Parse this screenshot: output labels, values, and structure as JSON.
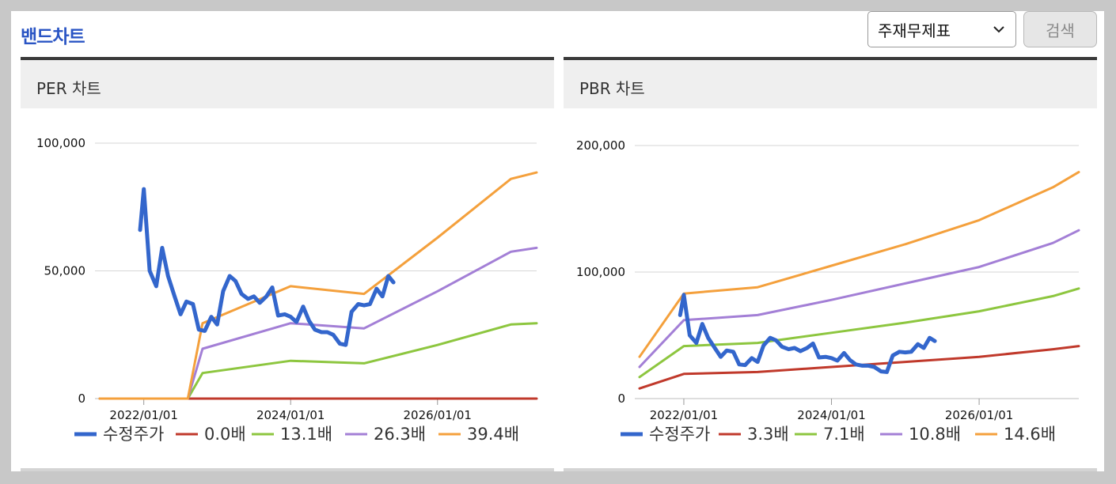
{
  "header": {
    "title": "밴드차트",
    "select_value": "주재무제표",
    "search_label": "검색"
  },
  "panels": [
    {
      "title": "PER 차트"
    },
    {
      "title": "PBR 차트"
    }
  ],
  "chart_data": [
    {
      "type": "line",
      "title": "PER 차트",
      "ylim": [
        0,
        100000
      ],
      "yticks": [
        0,
        50000,
        100000
      ],
      "ytick_labels": [
        "0",
        "50,000",
        "100,000"
      ],
      "xlim": [
        2021.4,
        2027.35
      ],
      "xticks": [
        2022,
        2024,
        2026
      ],
      "xtick_labels": [
        "2022/01/01",
        "2024/01/01",
        "2026/01/01"
      ],
      "grid": true,
      "legend_position": "bottom",
      "series": [
        {
          "name": "수정주가",
          "color": "#3366cc",
          "x": [
            2021.95,
            2022.0,
            2022.08,
            2022.17,
            2022.25,
            2022.33,
            2022.42,
            2022.5,
            2022.58,
            2022.67,
            2022.75,
            2022.83,
            2022.92,
            2023.0,
            2023.08,
            2023.17,
            2023.25,
            2023.33,
            2023.42,
            2023.5,
            2023.58,
            2023.67,
            2023.75,
            2023.83,
            2023.92,
            2024.0,
            2024.08,
            2024.17,
            2024.25,
            2024.33,
            2024.42,
            2024.5,
            2024.58,
            2024.67,
            2024.75,
            2024.83,
            2024.92,
            2025.0,
            2025.08,
            2025.17,
            2025.25,
            2025.33,
            2025.4
          ],
          "values": [
            66000,
            82000,
            50000,
            44000,
            59000,
            48000,
            40000,
            33000,
            38000,
            37000,
            27000,
            26500,
            32000,
            29000,
            42000,
            48000,
            46000,
            41000,
            39000,
            40000,
            37500,
            40000,
            43500,
            32500,
            33000,
            32000,
            30000,
            36000,
            30500,
            27000,
            26000,
            26000,
            25000,
            21500,
            21000,
            34000,
            37000,
            36500,
            37000,
            43000,
            40000,
            48000,
            45500
          ]
        },
        {
          "name": "0.0배",
          "color": "#c0392b",
          "x": [
            2021.4,
            2027.35
          ],
          "values": [
            0,
            0
          ]
        },
        {
          "name": "13.1배",
          "color": "#8dc63f",
          "x": [
            2021.4,
            2022.6,
            2022.8,
            2024.0,
            2025.0,
            2026.0,
            2027.0,
            2027.35
          ],
          "values": [
            0,
            0,
            10000,
            14800,
            13800,
            21000,
            29000,
            29500
          ]
        },
        {
          "name": "26.3배",
          "color": "#a37fd6",
          "x": [
            2021.4,
            2022.6,
            2022.8,
            2024.0,
            2025.0,
            2026.0,
            2027.0,
            2027.35
          ],
          "values": [
            0,
            0,
            19500,
            29500,
            27500,
            42000,
            57500,
            59000
          ]
        },
        {
          "name": "39.4배",
          "color": "#f4a03c",
          "x": [
            2021.4,
            2022.6,
            2022.8,
            2024.0,
            2025.0,
            2026.0,
            2027.0,
            2027.35
          ],
          "values": [
            0,
            0,
            29500,
            44000,
            41000,
            63000,
            86000,
            88500
          ]
        }
      ]
    },
    {
      "type": "line",
      "title": "PBR 차트",
      "ylim": [
        0,
        200000
      ],
      "yticks": [
        0,
        100000,
        200000
      ],
      "ytick_labels": [
        "0",
        "100,000",
        "200,000"
      ],
      "xlim": [
        2021.4,
        2027.35
      ],
      "xticks": [
        2022,
        2024,
        2026
      ],
      "xtick_labels": [
        "2022/01/01",
        "2024/01/01",
        "2026/01/01"
      ],
      "grid": true,
      "legend_position": "bottom",
      "series": [
        {
          "name": "수정주가",
          "color": "#3366cc",
          "x": [
            2021.95,
            2022.0,
            2022.08,
            2022.17,
            2022.25,
            2022.33,
            2022.42,
            2022.5,
            2022.58,
            2022.67,
            2022.75,
            2022.83,
            2022.92,
            2023.0,
            2023.08,
            2023.17,
            2023.25,
            2023.33,
            2023.42,
            2023.5,
            2023.58,
            2023.67,
            2023.75,
            2023.83,
            2023.92,
            2024.0,
            2024.08,
            2024.17,
            2024.25,
            2024.33,
            2024.42,
            2024.5,
            2024.58,
            2024.67,
            2024.75,
            2024.83,
            2024.92,
            2025.0,
            2025.08,
            2025.17,
            2025.25,
            2025.33,
            2025.4
          ],
          "values": [
            66000,
            82000,
            50000,
            44000,
            59000,
            48000,
            40000,
            33000,
            38000,
            37000,
            27000,
            26500,
            32000,
            29000,
            42000,
            48000,
            46000,
            41000,
            39000,
            40000,
            37500,
            40000,
            43500,
            32500,
            33000,
            32000,
            30000,
            36000,
            30500,
            27000,
            26000,
            26000,
            25000,
            21500,
            21000,
            34000,
            37000,
            36500,
            37000,
            43000,
            40000,
            48000,
            45500
          ]
        },
        {
          "name": "3.3배",
          "color": "#c0392b",
          "x": [
            2021.4,
            2022.0,
            2023.0,
            2024.0,
            2025.0,
            2026.0,
            2027.0,
            2027.35
          ],
          "values": [
            8000,
            19500,
            21000,
            25000,
            29000,
            33000,
            39000,
            41500
          ]
        },
        {
          "name": "7.1배",
          "color": "#8dc63f",
          "x": [
            2021.4,
            2022.0,
            2023.0,
            2024.0,
            2025.0,
            2026.0,
            2027.0,
            2027.35
          ],
          "values": [
            17000,
            41500,
            44000,
            52000,
            60000,
            69000,
            81000,
            87000
          ]
        },
        {
          "name": "10.8배",
          "color": "#a37fd6",
          "x": [
            2021.4,
            2022.0,
            2023.0,
            2024.0,
            2025.0,
            2026.0,
            2027.0,
            2027.35
          ],
          "values": [
            25000,
            62000,
            66000,
            78000,
            91000,
            104000,
            123000,
            133000
          ]
        },
        {
          "name": "14.6배",
          "color": "#f4a03c",
          "x": [
            2021.4,
            2022.0,
            2023.0,
            2024.0,
            2025.0,
            2026.0,
            2027.0,
            2027.35
          ],
          "values": [
            33000,
            83000,
            88000,
            105000,
            122000,
            141000,
            167000,
            179000
          ]
        }
      ]
    }
  ]
}
